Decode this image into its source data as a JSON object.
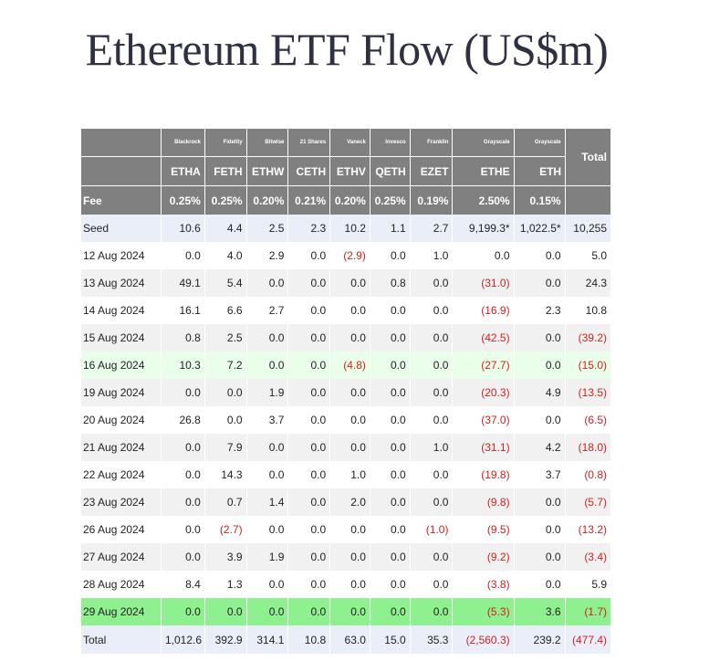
{
  "title": "Ethereum ETF Flow (US$m)",
  "issuers": [
    "Blackrock",
    "Fidelity",
    "Bitwise",
    "21 Shares",
    "Vaneck",
    "Invesco",
    "Franklin",
    "Grayscale",
    "Grayscale"
  ],
  "total_header": "Total",
  "tickers": [
    "ETHA",
    "FETH",
    "ETHW",
    "CETH",
    "ETHV",
    "QETH",
    "EZET",
    "ETHE",
    "ETH"
  ],
  "fee_label": "Fee",
  "fees": [
    "0.25%",
    "0.25%",
    "0.20%",
    "0.21%",
    "0.20%",
    "0.25%",
    "0.19%",
    "2.50%",
    "0.15%"
  ],
  "rows": [
    {
      "date": "Seed",
      "values": [
        "10.6",
        "4.4",
        "2.5",
        "2.3",
        "10.2",
        "1.1",
        "2.7",
        "9,199.3*",
        "1,022.5*"
      ],
      "total": "10,255"
    },
    {
      "date": "12 Aug 2024",
      "values": [
        "0.0",
        "4.0",
        "2.9",
        "0.0",
        "(2.9)",
        "0.0",
        "1.0",
        "0.0",
        "0.0"
      ],
      "total": "5.0"
    },
    {
      "date": "13 Aug 2024",
      "values": [
        "49.1",
        "5.4",
        "0.0",
        "0.0",
        "0.0",
        "0.8",
        "0.0",
        "(31.0)",
        "0.0"
      ],
      "total": "24.3"
    },
    {
      "date": "14 Aug 2024",
      "values": [
        "16.1",
        "6.6",
        "2.7",
        "0.0",
        "0.0",
        "0.0",
        "0.0",
        "(16.9)",
        "2.3"
      ],
      "total": "10.8"
    },
    {
      "date": "15 Aug 2024",
      "values": [
        "0.8",
        "2.5",
        "0.0",
        "0.0",
        "0.0",
        "0.0",
        "0.0",
        "(42.5)",
        "0.0"
      ],
      "total": "(39.2)"
    },
    {
      "date": "16 Aug 2024",
      "values": [
        "10.3",
        "7.2",
        "0.0",
        "0.0",
        "(4.8)",
        "0.0",
        "0.0",
        "(27.7)",
        "0.0"
      ],
      "total": "(15.0)"
    },
    {
      "date": "19 Aug 2024",
      "values": [
        "0.0",
        "0.0",
        "1.9",
        "0.0",
        "0.0",
        "0.0",
        "0.0",
        "(20.3)",
        "4.9"
      ],
      "total": "(13.5)"
    },
    {
      "date": "20 Aug 2024",
      "values": [
        "26.8",
        "0.0",
        "3.7",
        "0.0",
        "0.0",
        "0.0",
        "0.0",
        "(37.0)",
        "0.0"
      ],
      "total": "(6.5)"
    },
    {
      "date": "21 Aug 2024",
      "values": [
        "0.0",
        "7.9",
        "0.0",
        "0.0",
        "0.0",
        "0.0",
        "1.0",
        "(31.1)",
        "4.2"
      ],
      "total": "(18.0)"
    },
    {
      "date": "22 Aug 2024",
      "values": [
        "0.0",
        "14.3",
        "0.0",
        "0.0",
        "1.0",
        "0.0",
        "0.0",
        "(19.8)",
        "3.7"
      ],
      "total": "(0.8)"
    },
    {
      "date": "23 Aug 2024",
      "values": [
        "0.0",
        "0.7",
        "1.4",
        "0.0",
        "2.0",
        "0.0",
        "0.0",
        "(9.8)",
        "0.0"
      ],
      "total": "(5.7)"
    },
    {
      "date": "26 Aug 2024",
      "values": [
        "0.0",
        "(2.7)",
        "0.0",
        "0.0",
        "0.0",
        "0.0",
        "(1.0)",
        "(9.5)",
        "0.0"
      ],
      "total": "(13.2)"
    },
    {
      "date": "27 Aug 2024",
      "values": [
        "0.0",
        "3.9",
        "1.9",
        "0.0",
        "0.0",
        "0.0",
        "0.0",
        "(9.2)",
        "0.0"
      ],
      "total": "(3.4)"
    },
    {
      "date": "28 Aug 2024",
      "values": [
        "8.4",
        "1.3",
        "0.0",
        "0.0",
        "0.0",
        "0.0",
        "0.0",
        "(3.8)",
        "0.0"
      ],
      "total": "5.9"
    },
    {
      "date": "29 Aug 2024",
      "values": [
        "0.0",
        "0.0",
        "0.0",
        "0.0",
        "0.0",
        "0.0",
        "0.0",
        "(5.3)",
        "3.6"
      ],
      "total": "(1.7)"
    }
  ],
  "totals_row": {
    "label": "Total",
    "values": [
      "1,012.6",
      "392.9",
      "314.1",
      "10.8",
      "63.0",
      "15.0",
      "35.3",
      "(2,560.3)",
      "239.2"
    ],
    "total": "(477.4)"
  },
  "colors": {
    "header_bg": "#808080",
    "header_text": "#ffffff",
    "negative_text": "#d41f1f",
    "seed_row_bg": "#e9eef8",
    "highlight_row_bg": "#e9ffe9",
    "latest_row_bg": "#8ef08e",
    "title_text": "#2f3042"
  }
}
